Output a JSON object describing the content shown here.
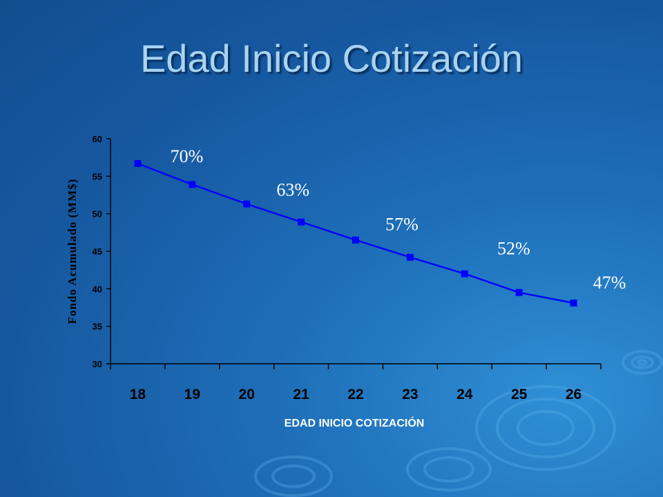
{
  "title": "Edad Inicio Cotización",
  "chart_data": {
    "type": "line",
    "x": [
      "18",
      "19",
      "20",
      "21",
      "22",
      "23",
      "24",
      "25",
      "26"
    ],
    "series": [
      {
        "values": [
          56.7,
          53.9,
          51.3,
          48.9,
          46.5,
          44.2,
          42.0,
          39.5,
          38.1
        ]
      }
    ],
    "xlabel": "EDAD INICIO COTIZACIÓN",
    "ylabel": "Fondo Acumulado (MM$)",
    "ylim": [
      30,
      60
    ],
    "yticks": [
      30,
      35,
      40,
      45,
      50,
      55,
      60
    ],
    "grid": false,
    "legend": "none",
    "line_color": "#0000ff",
    "annotations": [
      {
        "text": "70%",
        "x": "18"
      },
      {
        "text": "63%",
        "x": "20"
      },
      {
        "text": "57%",
        "x": "22"
      },
      {
        "text": "52%",
        "x": "24"
      },
      {
        "text": "47%",
        "x": "26"
      }
    ]
  }
}
